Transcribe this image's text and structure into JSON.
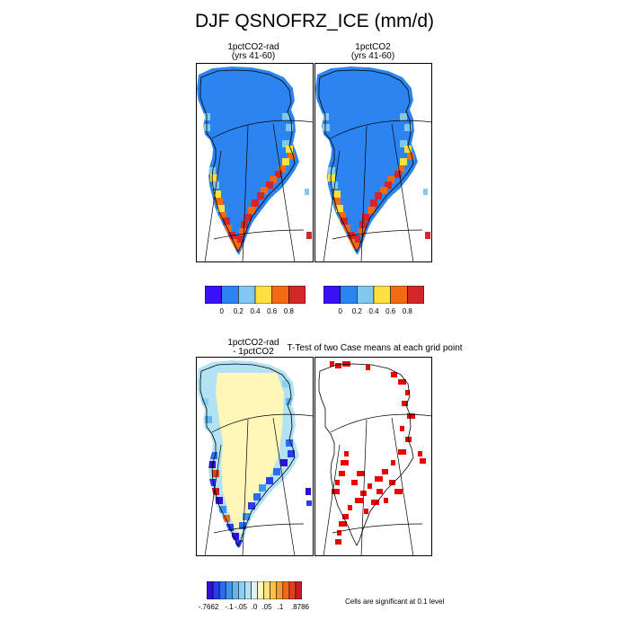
{
  "figure": {
    "title": "DJF QSNOFRZ_ICE (mm/d)"
  },
  "panels": [
    {
      "id": "rad",
      "title_line1": "1pctCO2-rad",
      "title_line2": "(yrs 41-60)"
    },
    {
      "id": "base",
      "title_line1": "1pctCO2",
      "title_line2": "(yrs 41-60)"
    },
    {
      "id": "diff",
      "title_line1": "1pctCO2-rad",
      "title_line2": "- 1pctCO2"
    },
    {
      "id": "ttest",
      "title_line1": "T-Test of two Case means at each grid point",
      "title_line2": ""
    }
  ],
  "colorbar_abs": {
    "colors": [
      "#3a10f4",
      "#2c84f0",
      "#82c8ee",
      "#ffe040",
      "#f26a12",
      "#d3262b"
    ],
    "tick_labels": [
      "0",
      "0.2",
      "0.4",
      "0.6",
      "0.8"
    ]
  },
  "colorbar_diff": {
    "colors": [
      "#3010d8",
      "#2a3cf0",
      "#2a6cf2",
      "#3a96f0",
      "#5fb6f2",
      "#8ad0f2",
      "#b2e2f4",
      "#dff2f7",
      "#fff7b8",
      "#fde27a",
      "#fcc148",
      "#f99a2e",
      "#f06a1e",
      "#e2401e",
      "#c41e24"
    ],
    "tick_labels": [
      "-.7662",
      "-.1",
      "-.05",
      ".0",
      ".05",
      ".1",
      ".8786"
    ]
  },
  "significance_note": "Cells are significant at 0.1 level",
  "significance_color": "#ee0000",
  "ocean_color": "#ffffff"
}
